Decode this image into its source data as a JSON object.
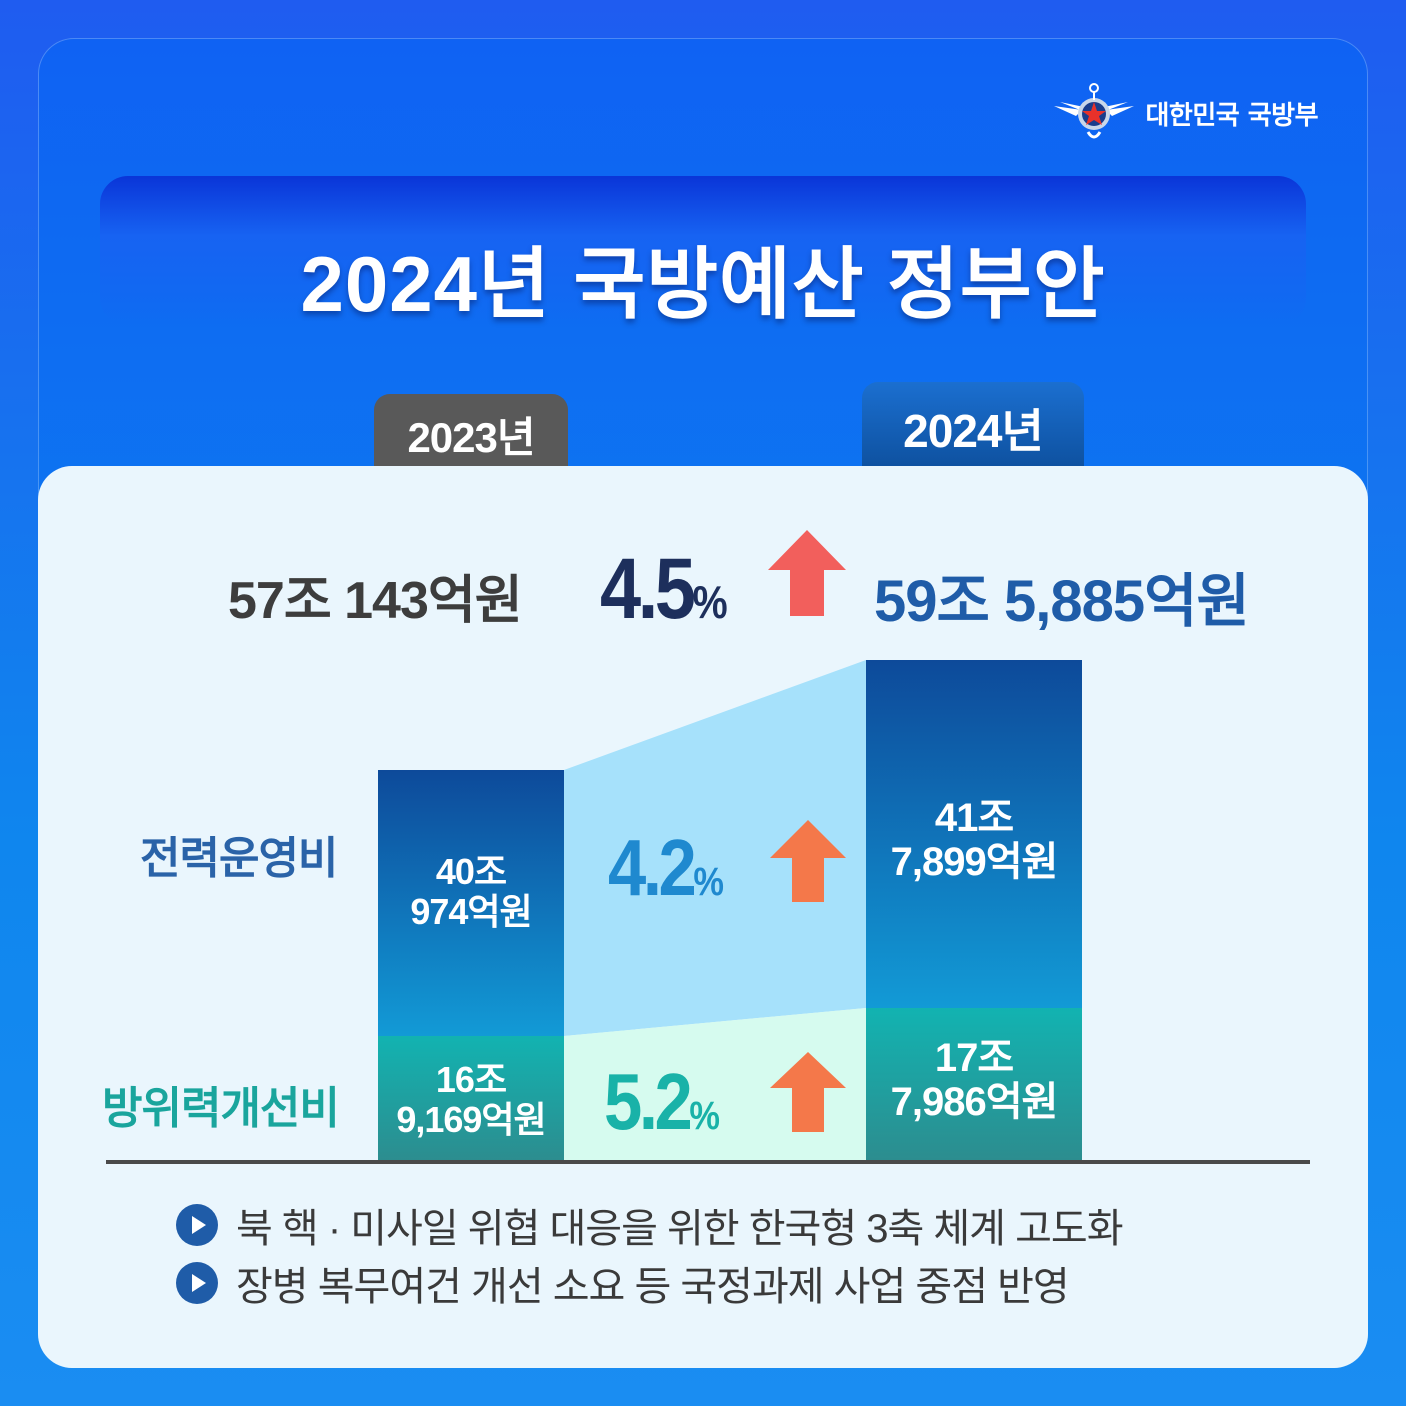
{
  "brand": {
    "name": "대한민국 국방부",
    "icon": "ministry-emblem-icon"
  },
  "title": "2024년 국방예산 정부안",
  "years": {
    "prev": "2023년",
    "curr": "2024년"
  },
  "totals": {
    "prev": "57조 143억원",
    "rate_value": "4.5",
    "rate_unit": "%",
    "curr": "59조 5,885억원"
  },
  "categories": {
    "ops": "전력운영비",
    "imp": "방위력개선비"
  },
  "bars": {
    "prev_ops_line1": "40조",
    "prev_ops_line2": "974억원",
    "prev_imp_line1": "16조",
    "prev_imp_line2": "9,169억원",
    "curr_ops_line1": "41조",
    "curr_ops_line2": "7,899억원",
    "curr_imp_line1": "17조",
    "curr_imp_line2": "7,986억원"
  },
  "rates": {
    "ops_value": "4.2",
    "imp_value": "5.2",
    "unit": "%"
  },
  "bullets": [
    "북 핵 · 미사일 위협 대응을 위한 한국형 3축 체계 고도화",
    "장병 복무여건 개선 소요 등 국정과제 사업 중점 반영"
  ],
  "colors": {
    "ops_bar_top": "#0d4a9a",
    "ops_bar_bottom": "#129ad6",
    "imp_bar_top": "#12b3b1",
    "imp_bar_bottom": "#2c8d8f",
    "ops_band": "#a6e1fb",
    "imp_band": "#d6fbef",
    "arrow_total": "#f25f5c",
    "arrow_category": "#f4784a"
  },
  "chart_data": {
    "type": "bar",
    "stacked": true,
    "categories": [
      "2023년",
      "2024년"
    ],
    "unit": "억원",
    "series": [
      {
        "name": "방위력개선비",
        "values": [
          169169,
          177986
        ]
      },
      {
        "name": "전력운영비",
        "values": [
          400974,
          417899
        ]
      }
    ],
    "totals": [
      570143,
      595885
    ],
    "growth_rates": {
      "전력운영비": 4.2,
      "방위력개선비": 5.2,
      "total": 4.5
    },
    "ylim": [
      0,
      600000
    ],
    "legend": "none",
    "grid": false
  }
}
